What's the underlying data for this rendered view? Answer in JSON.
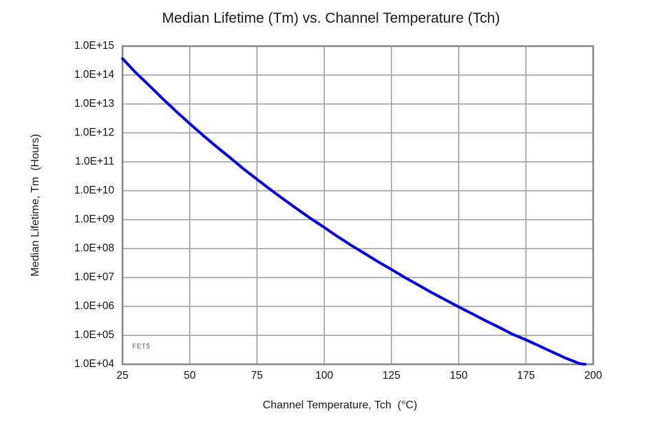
{
  "chart_data": {
    "type": "line",
    "title": "Median Lifetime (Tm) vs. Channel Temperature (Tch)",
    "xlabel": "Channel Temperature, Tch  (°C)",
    "ylabel": "Median Lifetime, Tm  (Hours)",
    "annotation": "FET5",
    "x_ticks": [
      "25",
      "50",
      "75",
      "100",
      "125",
      "150",
      "175",
      "200"
    ],
    "y_ticks": [
      "1.0E+15",
      "1.0E+14",
      "1.0E+13",
      "1.0E+12",
      "1.0E+11",
      "1.0E+10",
      "1.0E+09",
      "1.0E+08",
      "1.0E+07",
      "1.0E+06",
      "1.0E+05",
      "1.0E+04"
    ],
    "xlim": [
      25,
      200
    ],
    "ylim": [
      10000.0,
      1000000000000000.0
    ],
    "y_scale": "log",
    "grid": true,
    "legend_position": "none",
    "colors": {
      "curve": "#0000e0",
      "grid": "#9a9a9a",
      "border": "#858585",
      "annotation_text": "#606060"
    },
    "series": [
      {
        "name": "FET5",
        "x": [
          25,
          30,
          35,
          40,
          45,
          50,
          55,
          60,
          65,
          70,
          75,
          80,
          85,
          90,
          95,
          100,
          105,
          110,
          115,
          120,
          125,
          130,
          135,
          140,
          145,
          150,
          155,
          160,
          165,
          170,
          175,
          180,
          185,
          190,
          195,
          197
        ],
        "y": [
          370000000000000.0,
          120000000000000.0,
          43000000000000.0,
          15000000000000.0,
          5500000000000.0,
          2100000000000.0,
          810000000000.0,
          330000000000.0,
          140000000000.0,
          57000000000.0,
          25000000000.0,
          11000000000.0,
          5000000000.0,
          2300000000.0,
          1100000000.0,
          540000000.0,
          260000000.0,
          130000000.0,
          68000000.0,
          35000000.0,
          19000000.0,
          10000000.0,
          5500000.0,
          3000000.0,
          1700000.0,
          960000.0,
          560000.0,
          320000.0,
          190000.0,
          110000.0,
          70000.0,
          43000.0,
          26000.0,
          16000.0,
          10500.0,
          10000.0
        ]
      }
    ]
  }
}
